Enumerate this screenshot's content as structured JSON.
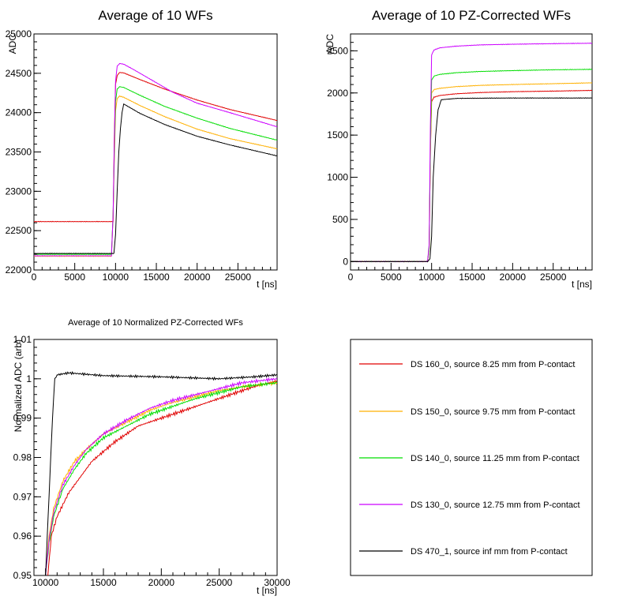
{
  "chart_data": [
    {
      "type": "line",
      "title": "Average of 10 WFs",
      "xlabel": "t [ns]",
      "ylabel": "ADC",
      "xlim": [
        0,
        29800
      ],
      "ylim": [
        22000,
        25000
      ],
      "xticks": [
        0,
        5000,
        10000,
        15000,
        20000,
        25000
      ],
      "yticks": [
        22000,
        22500,
        23000,
        23500,
        24000,
        24500,
        25000
      ],
      "series": [
        {
          "color": "#e00000",
          "x": [
            0,
            9700,
            9850,
            10000,
            10200,
            10500,
            11000,
            13000,
            16000,
            20000,
            24000,
            29800
          ],
          "y": [
            22615,
            22615,
            23700,
            24360,
            24470,
            24510,
            24505,
            24420,
            24300,
            24160,
            24040,
            23900
          ]
        },
        {
          "color": "#ffb000",
          "x": [
            0,
            9500,
            9700,
            9850,
            10000,
            10200,
            10500,
            11000,
            13000,
            16000,
            20000,
            24000,
            29800
          ],
          "y": [
            22175,
            22175,
            22700,
            23400,
            24020,
            24180,
            24210,
            24195,
            24090,
            23950,
            23790,
            23670,
            23540
          ]
        },
        {
          "color": "#00dd00",
          "x": [
            0,
            9500,
            9700,
            9850,
            10000,
            10200,
            10500,
            11000,
            13000,
            16000,
            20000,
            24000,
            29800
          ],
          "y": [
            22200,
            22200,
            22700,
            23500,
            24140,
            24300,
            24330,
            24320,
            24220,
            24080,
            23930,
            23800,
            23650
          ]
        },
        {
          "color": "#cc00ff",
          "x": [
            0,
            9500,
            9700,
            9850,
            10000,
            10200,
            10500,
            11000,
            12000,
            14000,
            17000,
            20000,
            24000,
            29800
          ],
          "y": [
            22180,
            22180,
            22700,
            23600,
            24400,
            24590,
            24625,
            24615,
            24560,
            24440,
            24260,
            24120,
            24000,
            23820
          ]
        },
        {
          "color": "#000000",
          "x": [
            0,
            9800,
            10000,
            10200,
            10400,
            10600,
            10800,
            11000,
            11500,
            13000,
            16000,
            20000,
            24000,
            29800
          ],
          "y": [
            22210,
            22210,
            22450,
            23000,
            23500,
            23800,
            24000,
            24110,
            24080,
            23990,
            23850,
            23700,
            23590,
            23450
          ]
        }
      ]
    },
    {
      "type": "line",
      "title": "Average of 10 PZ-Corrected WFs",
      "xlabel": "t [ns]",
      "ylabel": "ADC",
      "xlim": [
        0,
        29800
      ],
      "ylim": [
        -100,
        2700
      ],
      "xticks": [
        0,
        5000,
        10000,
        15000,
        20000,
        25000
      ],
      "yticks": [
        0,
        500,
        1000,
        1500,
        2000,
        2500
      ],
      "series": [
        {
          "color": "#e00000",
          "x": [
            0,
            9500,
            9700,
            9850,
            10000,
            10300,
            11000,
            13000,
            16000,
            20000,
            25000,
            29800
          ],
          "y": [
            0,
            0,
            150,
            1300,
            1900,
            1950,
            1970,
            1990,
            2005,
            2015,
            2022,
            2030
          ]
        },
        {
          "color": "#ffb000",
          "x": [
            0,
            9500,
            9700,
            9850,
            10000,
            10300,
            11000,
            13000,
            16000,
            20000,
            25000,
            29800
          ],
          "y": [
            0,
            0,
            150,
            1300,
            2000,
            2040,
            2055,
            2075,
            2090,
            2100,
            2110,
            2120
          ]
        },
        {
          "color": "#00dd00",
          "x": [
            0,
            9500,
            9700,
            9850,
            10000,
            10300,
            11000,
            13000,
            16000,
            20000,
            25000,
            29800
          ],
          "y": [
            0,
            0,
            150,
            1350,
            2150,
            2200,
            2220,
            2240,
            2255,
            2265,
            2275,
            2280
          ]
        },
        {
          "color": "#cc00ff",
          "x": [
            0,
            9500,
            9700,
            9850,
            10000,
            10300,
            11000,
            13000,
            16000,
            20000,
            25000,
            29800
          ],
          "y": [
            0,
            0,
            200,
            1600,
            2450,
            2510,
            2535,
            2555,
            2570,
            2578,
            2585,
            2590
          ]
        },
        {
          "color": "#000000",
          "x": [
            0,
            9500,
            9800,
            10000,
            10200,
            10500,
            10800,
            11200,
            13000,
            16000,
            20000,
            25000,
            29800
          ],
          "y": [
            0,
            0,
            30,
            300,
            1000,
            1500,
            1800,
            1920,
            1935,
            1938,
            1940,
            1940,
            1940
          ]
        }
      ]
    },
    {
      "type": "line",
      "title": "Average of 10 Normalized PZ-Corrected WFs",
      "xlabel": "t [ns]",
      "ylabel": "Normalized ADC (arb)",
      "xlim": [
        9000,
        30000
      ],
      "ylim": [
        0.95,
        1.01
      ],
      "xticks": [
        10000,
        15000,
        20000,
        25000,
        30000
      ],
      "yticks": [
        0.95,
        0.96,
        0.97,
        0.98,
        0.99,
        1,
        1.01
      ],
      "series": [
        {
          "color": "#e00000",
          "x": [
            10200,
            10500,
            11000,
            12000,
            13000,
            14000,
            16000,
            18000,
            20000,
            22000,
            24000,
            26000,
            28000,
            30000
          ],
          "y": [
            0.95,
            0.96,
            0.965,
            0.971,
            0.975,
            0.979,
            0.984,
            0.988,
            0.99,
            0.992,
            0.994,
            0.996,
            0.998,
            0.9995
          ]
        },
        {
          "color": "#ffb000",
          "x": [
            10000,
            10300,
            10700,
            11500,
            12500,
            13500,
            15000,
            17000,
            19000,
            21000,
            23000,
            25000,
            27000,
            30000
          ],
          "y": [
            0.95,
            0.96,
            0.967,
            0.974,
            0.979,
            0.982,
            0.986,
            0.989,
            0.992,
            0.994,
            0.9955,
            0.997,
            0.998,
            0.999
          ]
        },
        {
          "color": "#00dd00",
          "x": [
            10000,
            10300,
            10700,
            11500,
            12500,
            13500,
            15000,
            17000,
            19000,
            21000,
            23000,
            25000,
            27000,
            30000
          ],
          "y": [
            0.95,
            0.958,
            0.965,
            0.972,
            0.977,
            0.981,
            0.985,
            0.988,
            0.991,
            0.993,
            0.995,
            0.9965,
            0.998,
            0.999
          ]
        },
        {
          "color": "#cc00ff",
          "x": [
            10000,
            10300,
            10700,
            11500,
            12500,
            13500,
            15000,
            17000,
            19000,
            21000,
            23000,
            25000,
            27000,
            30000
          ],
          "y": [
            0.95,
            0.959,
            0.966,
            0.973,
            0.978,
            0.982,
            0.986,
            0.9895,
            0.9925,
            0.9945,
            0.996,
            0.9975,
            0.999,
            1.0
          ]
        },
        {
          "color": "#000000",
          "x": [
            10000,
            10300,
            10600,
            10800,
            11000,
            12000,
            15000,
            20000,
            25000,
            28000,
            30000
          ],
          "y": [
            0.95,
            0.97,
            0.99,
            1.0,
            1.001,
            1.0015,
            1.0008,
            1.0005,
            1.0,
            1.0005,
            1.001
          ]
        }
      ]
    }
  ],
  "legend": {
    "entries": [
      {
        "label": "DS 160_0, source 8.25 mm from P-contact",
        "color": "#e00000"
      },
      {
        "label": "DS 150_0, source 9.75 mm from P-contact",
        "color": "#ffb000"
      },
      {
        "label": "DS 140_0, source 11.25 mm from P-contact",
        "color": "#00dd00"
      },
      {
        "label": "DS 130_0, source 12.75 mm from P-contact",
        "color": "#cc00ff"
      },
      {
        "label": "DS 470_1, source inf mm from P-contact",
        "color": "#000000"
      }
    ]
  }
}
